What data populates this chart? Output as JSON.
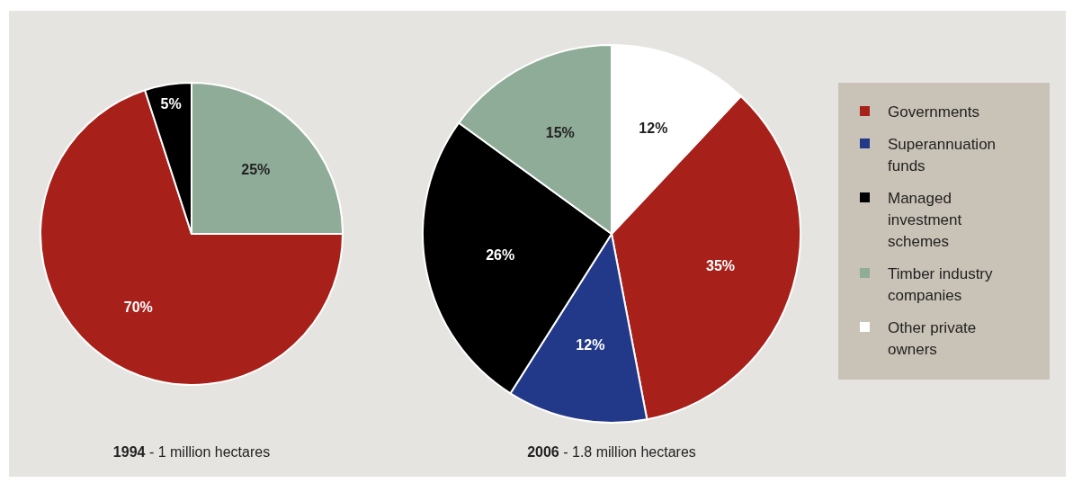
{
  "chart_data": [
    {
      "type": "pie",
      "title": "1994 - 1 million hectares",
      "categories": [
        null,
        null,
        null
      ],
      "values": [
        70,
        5,
        25
      ],
      "value_labels": [
        "70%",
        "5%",
        "25%"
      ],
      "colors": [
        "#a8201a",
        "#000000",
        "#8fac98"
      ]
    },
    {
      "type": "pie",
      "title": "2006 - 1.8 million hectares",
      "categories": [
        "Governments",
        "Superannuation funds",
        "Managed investment schemes",
        "Timber industry companies",
        "Other private owners"
      ],
      "values": [
        35,
        12,
        26,
        15,
        12
      ],
      "value_labels": [
        "35%",
        "12%",
        "26%",
        "15%",
        "12%"
      ],
      "colors": [
        "#a8201a",
        "#22398a",
        "#000000",
        "#8fac98",
        "#ffffff"
      ],
      "legend": "right"
    }
  ]
}
